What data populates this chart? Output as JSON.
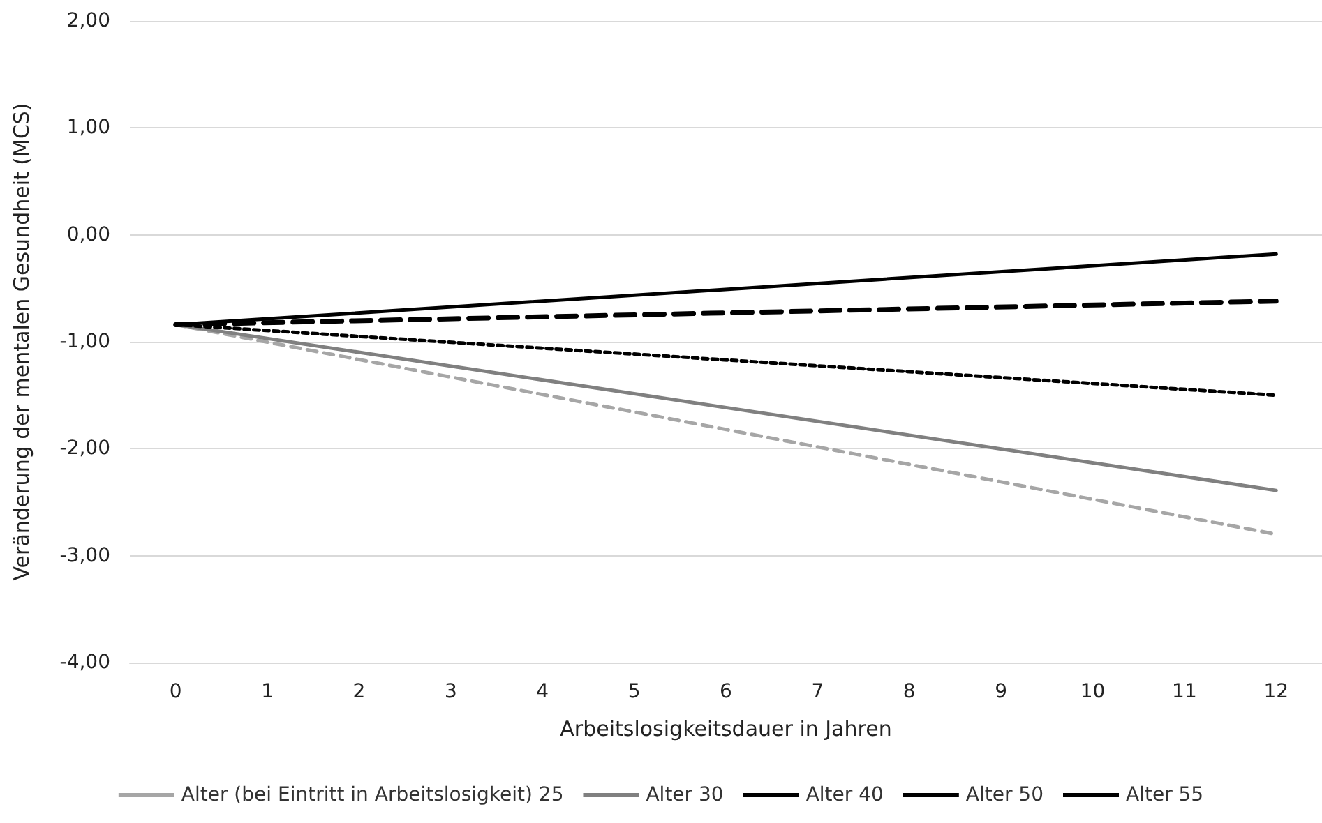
{
  "chart_data": {
    "type": "line",
    "xlabel": "Arbeitslosigkeitsdauer in Jahren",
    "ylabel": "Veränderung der mentalen Gesundheit (MCS)",
    "x": [
      0,
      12
    ],
    "series": [
      {
        "name": "Alter (bei Eintritt in Arbeitslosigkeit) 25",
        "color": "#a6a6a6",
        "values": [
          -0.84,
          -2.8
        ],
        "line_style": "dashed"
      },
      {
        "name": "Alter 30",
        "color": "#808080",
        "values": [
          -0.84,
          -2.39
        ],
        "line_style": "solid"
      },
      {
        "name": "Alter 40",
        "color": "#000000",
        "values": [
          -0.84,
          -1.5
        ],
        "line_style": "dotted"
      },
      {
        "name": "Alter 50",
        "color": "#000000",
        "values": [
          -0.84,
          -0.62
        ],
        "line_style": "dashed"
      },
      {
        "name": "Alter 55",
        "color": "#000000",
        "values": [
          -0.84,
          -0.18
        ],
        "line_style": "solid"
      }
    ],
    "xlim": [
      -0.5,
      12.5
    ],
    "xticks": [
      0,
      1,
      2,
      3,
      4,
      5,
      6,
      7,
      8,
      9,
      10,
      11,
      12
    ],
    "ylim": [
      -4,
      2
    ],
    "yticks": [
      {
        "value": -4,
        "label": "-4,00"
      },
      {
        "value": -3,
        "label": "-3,00"
      },
      {
        "value": -2,
        "label": "-2,00"
      },
      {
        "value": -1,
        "label": "-1,00"
      },
      {
        "value": 0,
        "label": "0,00"
      },
      {
        "value": 1,
        "label": "1,00"
      },
      {
        "value": 2,
        "label": "2,00"
      }
    ],
    "grid": "y",
    "legend": "bottom",
    "marker": "none"
  }
}
